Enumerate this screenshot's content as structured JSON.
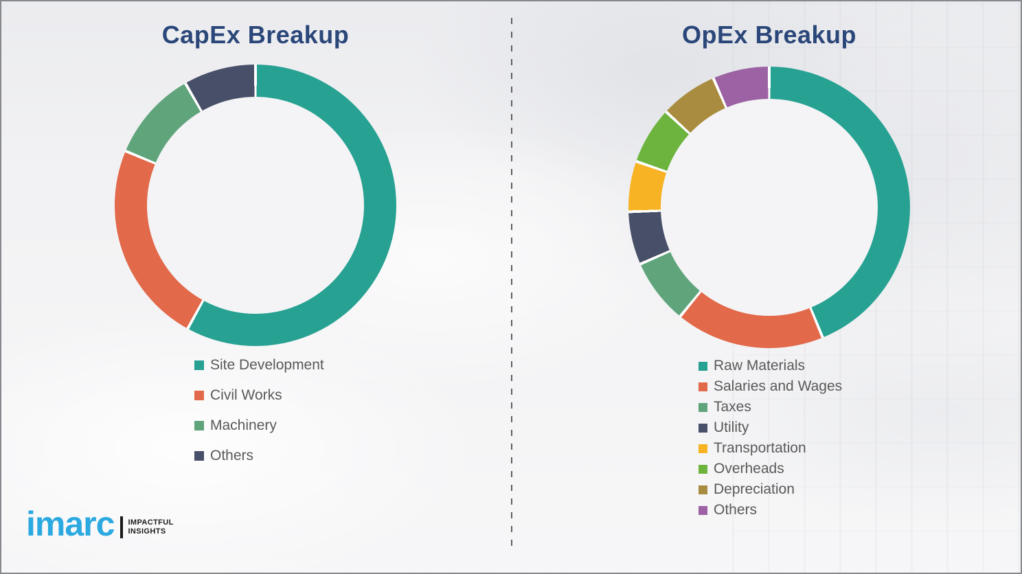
{
  "capex": {
    "title": "CapEx Breakup"
  },
  "opex": {
    "title": "OpEx Breakup"
  },
  "logo": {
    "brand": "imarc",
    "tagline_line1": "IMPACTFUL",
    "tagline_line2": "INSIGHTS"
  },
  "colors": {
    "teal": "#27a192",
    "orange": "#e2694a",
    "seagreen": "#5fa47b",
    "navy": "#485069",
    "yellow": "#f7b324",
    "green": "#6db43f",
    "gold": "#a98c3f",
    "purple": "#9c62a4",
    "title_blue": "#2b4779",
    "legend_text": "#595959",
    "logo_blue": "#2ba9e0"
  },
  "chart_data": [
    {
      "type": "pie",
      "subtype": "donut",
      "title": "CapEx Breakup",
      "categories": [
        "Site Development",
        "Civil Works",
        "Machinery",
        "Others"
      ],
      "values": [
        58.0,
        23.3,
        10.4,
        8.3
      ],
      "unit": "percent-estimated",
      "colors": [
        "#27a192",
        "#e2694a",
        "#5fa47b",
        "#485069"
      ],
      "start_angle_deg": 0,
      "direction": "clockwise",
      "hole_ratio": 0.77,
      "legend_position": "below-left"
    },
    {
      "type": "pie",
      "subtype": "donut",
      "title": "OpEx Breakup",
      "categories": [
        "Raw Materials",
        "Salaries and Wages",
        "Taxes",
        "Utility",
        "Transportation",
        "Overheads",
        "Depreciation",
        "Others"
      ],
      "values": [
        43.8,
        17.1,
        7.5,
        6.1,
        5.8,
        6.6,
        6.6,
        6.5
      ],
      "unit": "percent-estimated",
      "colors": [
        "#27a192",
        "#e2694a",
        "#5fa47b",
        "#485069",
        "#f7b324",
        "#6db43f",
        "#a98c3f",
        "#9c62a4"
      ],
      "start_angle_deg": 0,
      "direction": "clockwise",
      "hole_ratio": 0.77,
      "legend_position": "below-left"
    }
  ]
}
